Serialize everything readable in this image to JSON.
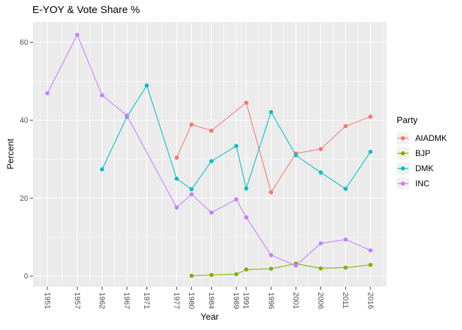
{
  "chart_data": {
    "type": "line",
    "title": "E-YOY & Vote Share %",
    "xlabel": "Year",
    "ylabel": "Percent",
    "legend_title": "Party",
    "legend_position": "right",
    "grid": true,
    "panel_background": "#EBEBEB",
    "gridline_color": "#FFFFFF",
    "tick_color": "#333333",
    "tick_label_color": "#4D4D4D",
    "x_ticks": [
      1951,
      1957,
      1962,
      1967,
      1971,
      1977,
      1980,
      1984,
      1989,
      1991,
      1996,
      2001,
      2006,
      2011,
      2016
    ],
    "y_ticks": [
      0,
      20,
      40,
      60
    ],
    "xlim": [
      1948.1,
      2019.2
    ],
    "ylim": [
      -2.7,
      65.2
    ],
    "series": [
      {
        "name": "AIADMK",
        "color": "#F8766D",
        "x": [
          1977,
          1980,
          1984,
          1991,
          1996,
          2001,
          2006,
          2011,
          2016
        ],
        "y": [
          30.4,
          38.9,
          37.3,
          44.5,
          21.5,
          31.5,
          32.6,
          38.5,
          40.9
        ]
      },
      {
        "name": "BJP",
        "color": "#7CAE00",
        "x": [
          1980,
          1984,
          1989,
          1991,
          1996,
          2001,
          2006,
          2011,
          2016
        ],
        "y": [
          0.1,
          0.3,
          0.5,
          1.7,
          1.9,
          3.2,
          2.0,
          2.2,
          2.9
        ]
      },
      {
        "name": "DMK",
        "color": "#00BFC4",
        "x": [
          1962,
          1967,
          1971,
          1977,
          1980,
          1984,
          1989,
          1991,
          1996,
          2001,
          2006,
          2011,
          2016
        ],
        "y": [
          27.4,
          40.9,
          48.9,
          25.0,
          22.3,
          29.5,
          33.4,
          22.5,
          42.1,
          31.0,
          26.6,
          22.4,
          31.9
        ]
      },
      {
        "name": "INC",
        "color": "#C77CFF",
        "x": [
          1951,
          1957,
          1962,
          1967,
          1977,
          1980,
          1984,
          1989,
          1991,
          1996,
          2001,
          2006,
          2011,
          2016
        ],
        "y": [
          46.9,
          61.9,
          46.4,
          41.2,
          17.6,
          21.0,
          16.3,
          19.7,
          15.1,
          5.4,
          2.7,
          8.4,
          9.4,
          6.6
        ]
      }
    ]
  }
}
